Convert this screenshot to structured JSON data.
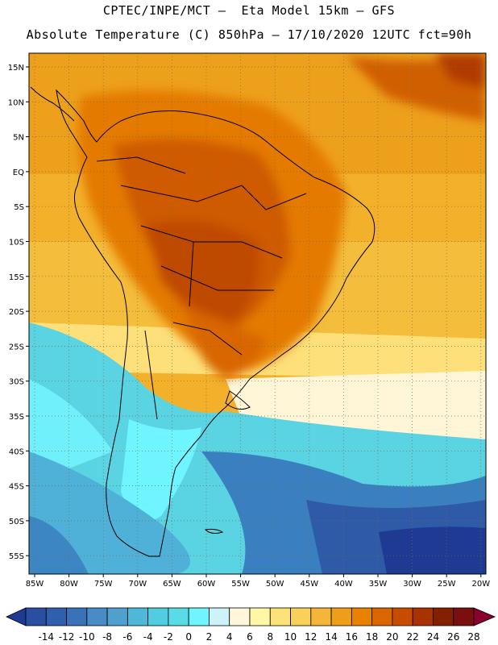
{
  "header": {
    "line1": "CPTEC/INPE/MCT –  Eta Model 15km – GFS",
    "line2": "Absolute Temperature (C) 850hPa – 17/10/2020 12UTC fct=90h"
  },
  "axes": {
    "lat_labels": [
      "15N",
      "10N",
      "5N",
      "EQ",
      "5S",
      "10S",
      "15S",
      "20S",
      "25S",
      "30S",
      "35S",
      "40S",
      "45S",
      "50S",
      "55S"
    ],
    "lon_labels": [
      "85W",
      "80W",
      "75W",
      "70W",
      "65W",
      "60W",
      "55W",
      "50W",
      "45W",
      "40W",
      "35W",
      "30W",
      "25W",
      "20W"
    ]
  },
  "colorbar": {
    "labels": [
      "-14",
      "-12",
      "-10",
      "-8",
      "-6",
      "-4",
      "-2",
      "0",
      "2",
      "4",
      "6",
      "8",
      "10",
      "12",
      "14",
      "16",
      "18",
      "20",
      "22",
      "24",
      "26",
      "28"
    ],
    "colors": [
      "#1f3a93",
      "#2a4fa0",
      "#305fae",
      "#3a72b8",
      "#4a8ac6",
      "#4fa0cf",
      "#4fb8d8",
      "#52cde0",
      "#5adce8",
      "#6ff5ff",
      "#cdf2f8",
      "#fff6dc",
      "#fff6a6",
      "#fde27a",
      "#f8d05a",
      "#f4b638",
      "#ee9e18",
      "#e98100",
      "#d96600",
      "#c74c00",
      "#a83200",
      "#822000",
      "#7a0f10",
      "#8a0030"
    ]
  },
  "map": {
    "region": "South America",
    "variable": "850hPa temperature"
  }
}
